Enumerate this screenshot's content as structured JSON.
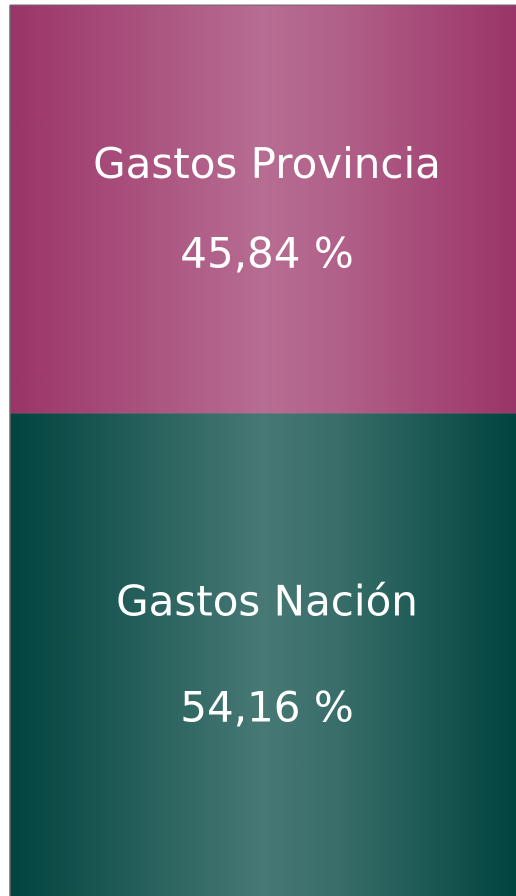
{
  "chart_data": {
    "type": "bar",
    "stacked": true,
    "series": [
      {
        "name": "Gastos Provincia",
        "color": "#9b3468",
        "values": [
          45.84
        ],
        "value_labels": [
          "45,84 %"
        ]
      },
      {
        "name": "Gastos Nación",
        "color": "#00443f",
        "values": [
          54.16
        ],
        "value_labels": [
          "54,16 %"
        ]
      }
    ]
  }
}
